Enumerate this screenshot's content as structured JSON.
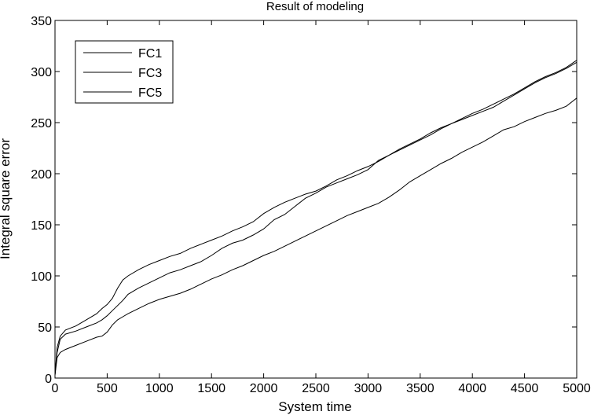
{
  "chart_data": {
    "type": "line",
    "title": "Result of modeling",
    "xlabel": "System time",
    "ylabel": "Integral square error",
    "xlim": [
      0,
      5000
    ],
    "ylim": [
      0,
      350
    ],
    "xticks": [
      0,
      500,
      1000,
      1500,
      2000,
      2500,
      3000,
      3500,
      4000,
      4500,
      5000
    ],
    "yticks": [
      0,
      50,
      100,
      150,
      200,
      250,
      300,
      350
    ],
    "grid": false,
    "legend_position": "top-left",
    "series": [
      {
        "name": "FC1",
        "color": "#000000",
        "x": [
          0,
          20,
          50,
          100,
          200,
          300,
          400,
          450,
          500,
          550,
          600,
          650,
          700,
          800,
          900,
          1000,
          1100,
          1200,
          1300,
          1400,
          1500,
          1600,
          1700,
          1800,
          1900,
          2000,
          2100,
          2200,
          2300,
          2400,
          2500,
          2600,
          2700,
          2800,
          2900,
          3000,
          3100,
          3200,
          3300,
          3400,
          3500,
          3600,
          3700,
          3800,
          3900,
          4000,
          4100,
          4200,
          4300,
          4400,
          4500,
          4600,
          4700,
          4800,
          4900,
          5000
        ],
        "values": [
          3,
          30,
          41,
          47,
          51,
          57,
          63,
          68,
          72,
          78,
          88,
          96,
          100,
          106,
          111,
          115,
          119,
          122,
          127,
          131,
          135,
          139,
          144,
          148,
          153,
          161,
          167,
          172,
          176,
          180,
          183,
          188,
          194,
          198,
          203,
          207,
          212,
          218,
          224,
          229,
          234,
          240,
          245,
          249,
          253,
          257,
          261,
          265,
          271,
          277,
          283,
          289,
          294,
          298,
          303,
          309
        ]
      },
      {
        "name": "FC3",
        "color": "#000000",
        "x": [
          0,
          20,
          50,
          100,
          200,
          300,
          400,
          450,
          500,
          550,
          600,
          650,
          700,
          800,
          900,
          1000,
          1100,
          1200,
          1300,
          1400,
          1500,
          1600,
          1700,
          1800,
          1900,
          2000,
          2100,
          2200,
          2300,
          2400,
          2500,
          2600,
          2700,
          2800,
          2900,
          3000,
          3100,
          3200,
          3300,
          3400,
          3500,
          3600,
          3700,
          3800,
          3900,
          4000,
          4100,
          4200,
          4300,
          4400,
          4500,
          4600,
          4700,
          4800,
          4900,
          5000
        ],
        "values": [
          3,
          25,
          38,
          43,
          46,
          50,
          54,
          57,
          61,
          66,
          71,
          76,
          82,
          88,
          93,
          98,
          103,
          106,
          110,
          114,
          120,
          127,
          132,
          135,
          140,
          146,
          155,
          160,
          168,
          176,
          181,
          187,
          191,
          195,
          199,
          204,
          213,
          218,
          223,
          228,
          233,
          238,
          244,
          249,
          254,
          259,
          263,
          268,
          273,
          278,
          284,
          290,
          295,
          299,
          304,
          311
        ]
      },
      {
        "name": "FC5",
        "color": "#000000",
        "x": [
          0,
          20,
          50,
          100,
          200,
          300,
          400,
          450,
          500,
          550,
          600,
          650,
          700,
          800,
          900,
          1000,
          1100,
          1200,
          1300,
          1400,
          1500,
          1600,
          1700,
          1800,
          1900,
          2000,
          2100,
          2200,
          2300,
          2400,
          2500,
          2600,
          2700,
          2800,
          2900,
          3000,
          3100,
          3200,
          3300,
          3400,
          3500,
          3600,
          3700,
          3800,
          3900,
          4000,
          4100,
          4200,
          4300,
          4400,
          4500,
          4600,
          4700,
          4800,
          4900,
          5000
        ],
        "values": [
          3,
          20,
          25,
          28,
          32,
          36,
          40,
          41,
          45,
          52,
          57,
          60,
          63,
          68,
          73,
          77,
          80,
          83,
          87,
          92,
          97,
          101,
          106,
          110,
          115,
          120,
          124,
          129,
          134,
          139,
          144,
          149,
          154,
          159,
          163,
          167,
          171,
          177,
          184,
          192,
          198,
          204,
          210,
          215,
          221,
          226,
          231,
          237,
          243,
          246,
          251,
          255,
          259,
          262,
          266,
          274
        ]
      }
    ]
  }
}
